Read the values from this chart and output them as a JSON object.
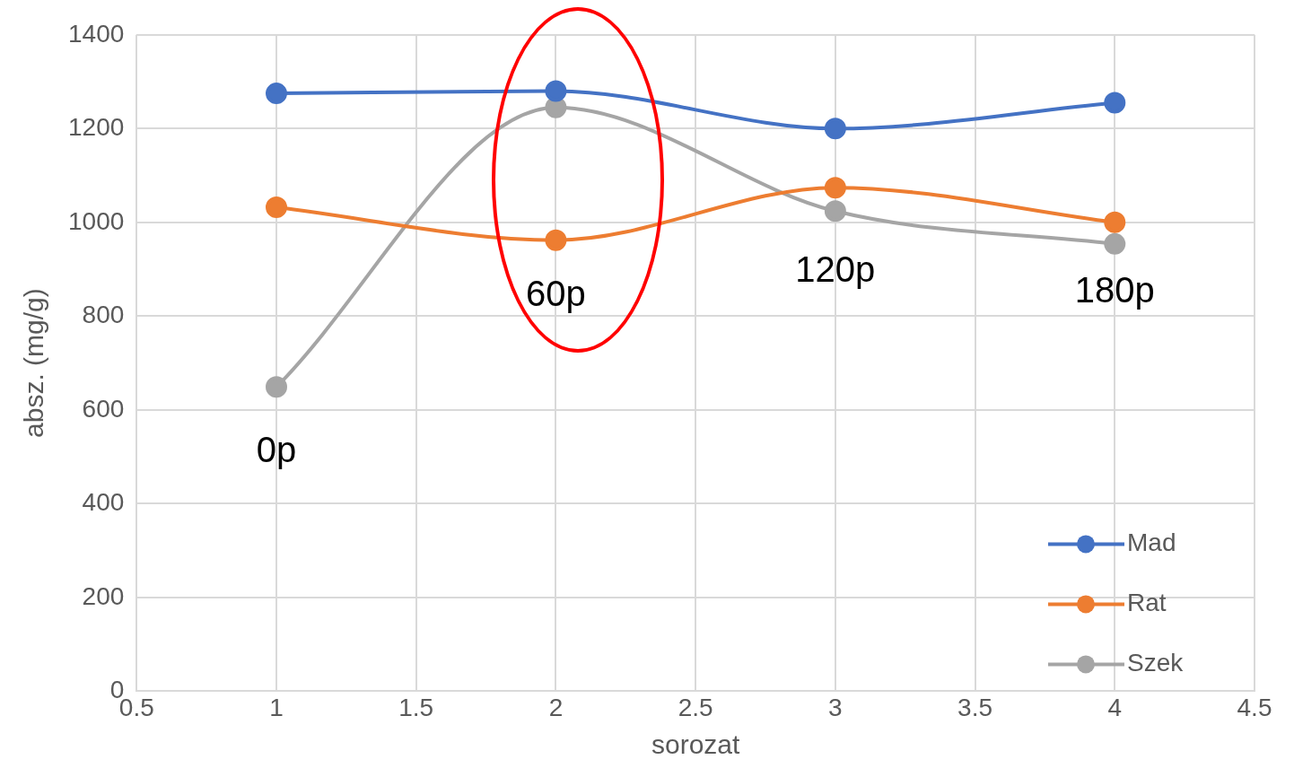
{
  "chart_data": {
    "type": "line",
    "xlabel": "sorozat",
    "ylabel": "absz. (mg/g)",
    "x": [
      1,
      2,
      3,
      4
    ],
    "series": [
      {
        "name": "Mad",
        "color": "#4472c4",
        "values": [
          1275,
          1280,
          1200,
          1255
        ]
      },
      {
        "name": "Rat",
        "color": "#ed7d31",
        "values": [
          1032,
          962,
          1074,
          1000
        ]
      },
      {
        "name": "Szek",
        "color": "#a5a5a5",
        "values": [
          649,
          1245,
          1024,
          954
        ]
      }
    ],
    "xlim": [
      0.5,
      4.5
    ],
    "xticks": [
      0.5,
      1,
      1.5,
      2,
      2.5,
      3,
      3.5,
      4,
      4.5
    ],
    "ylim": [
      0,
      1400
    ],
    "yticks": [
      0,
      200,
      400,
      600,
      800,
      1000,
      1200,
      1400
    ],
    "grid": true,
    "legend": "bottom right",
    "marker": "circle",
    "line_style": "solid",
    "annotations": [
      "0p",
      "60p",
      "120p",
      "180p"
    ]
  }
}
